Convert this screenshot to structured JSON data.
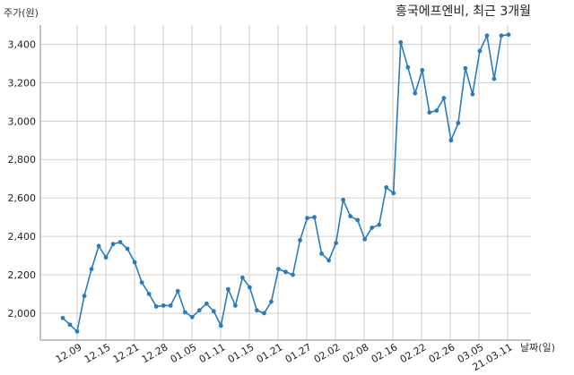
{
  "chart_data": {
    "type": "line",
    "title": "흥국에프엔비, 최근 3개월",
    "ylabel": "주가(원)",
    "xlabel": "날짜(일)",
    "x_tick_labels": [
      "12.09",
      "12.15",
      "12.21",
      "12.28",
      "01.05",
      "01.11",
      "01.15",
      "01.21",
      "01.27",
      "02.02",
      "02.08",
      "02.16",
      "02.22",
      "02.26",
      "03.05",
      "21.03.11"
    ],
    "y_tick_labels": [
      "2,000",
      "2,200",
      "2,400",
      "2,600",
      "2,800",
      "3,000",
      "3,200",
      "3,400"
    ],
    "ylim": [
      1860,
      3500
    ],
    "grid": true,
    "line_color": "#2b7bba",
    "series": [
      {
        "values": [
          1975,
          1940,
          1905,
          2090,
          2230,
          2350,
          2290,
          2360,
          2370,
          2335,
          2265,
          2160,
          2100,
          2035,
          2040,
          2040,
          2115,
          2005,
          1980,
          2015,
          2050,
          2010,
          1935,
          2125,
          2040,
          2185,
          2135,
          2015,
          2000,
          2060,
          2230,
          2215,
          2200,
          2380,
          2495,
          2500,
          2310,
          2275,
          2365,
          2590,
          2505,
          2485,
          2385,
          2445,
          2460,
          2655,
          2625,
          3410,
          3280,
          3145,
          3265,
          3045,
          3055,
          3120,
          2900,
          2990,
          3275,
          3140,
          3365,
          3445,
          3220,
          3445,
          3450
        ]
      }
    ]
  }
}
